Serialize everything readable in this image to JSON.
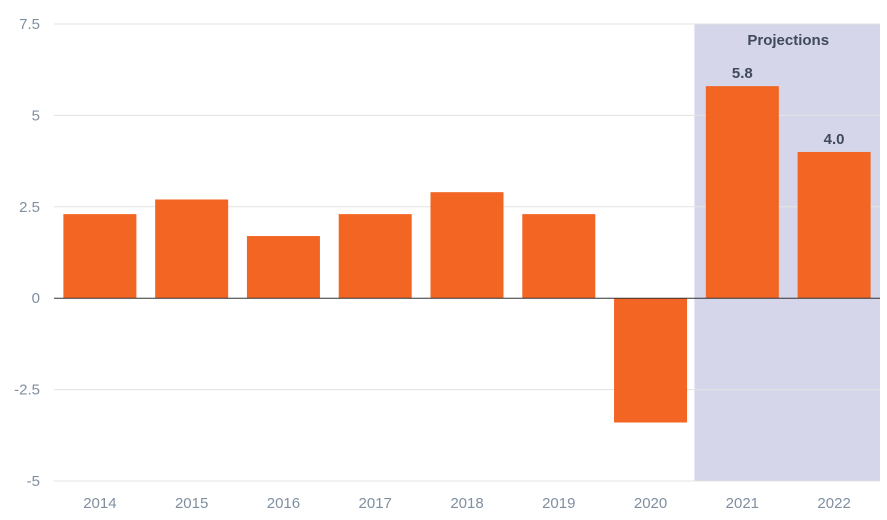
{
  "chart_data": {
    "type": "bar",
    "title": "",
    "xlabel": "",
    "ylabel": "",
    "categories": [
      "2014",
      "2015",
      "2016",
      "2017",
      "2018",
      "2019",
      "2020",
      "2021",
      "2022"
    ],
    "values": [
      2.3,
      2.7,
      1.7,
      2.3,
      2.9,
      2.3,
      -3.4,
      5.8,
      4.0
    ],
    "ylim": [
      -5,
      7.5
    ],
    "yticks": [
      7.5,
      5,
      2.5,
      0,
      -2.5,
      -5
    ],
    "ytick_labels": [
      "7.5",
      "5",
      "2.5",
      "0",
      "-2.5",
      "-5"
    ],
    "grid": true,
    "data_labels": {
      "2021": "5.8",
      "2022": "4.0"
    },
    "projection_region": {
      "label": "Projections",
      "categories": [
        "2021",
        "2022"
      ]
    },
    "colors": {
      "bar": "#f26522",
      "projection_band": "#d6d6ea",
      "gridline": "#e3e3e3",
      "zero_line": "#333333",
      "tick_text": "#7f8fa0",
      "annotation_text": "#3f4a5a"
    }
  }
}
